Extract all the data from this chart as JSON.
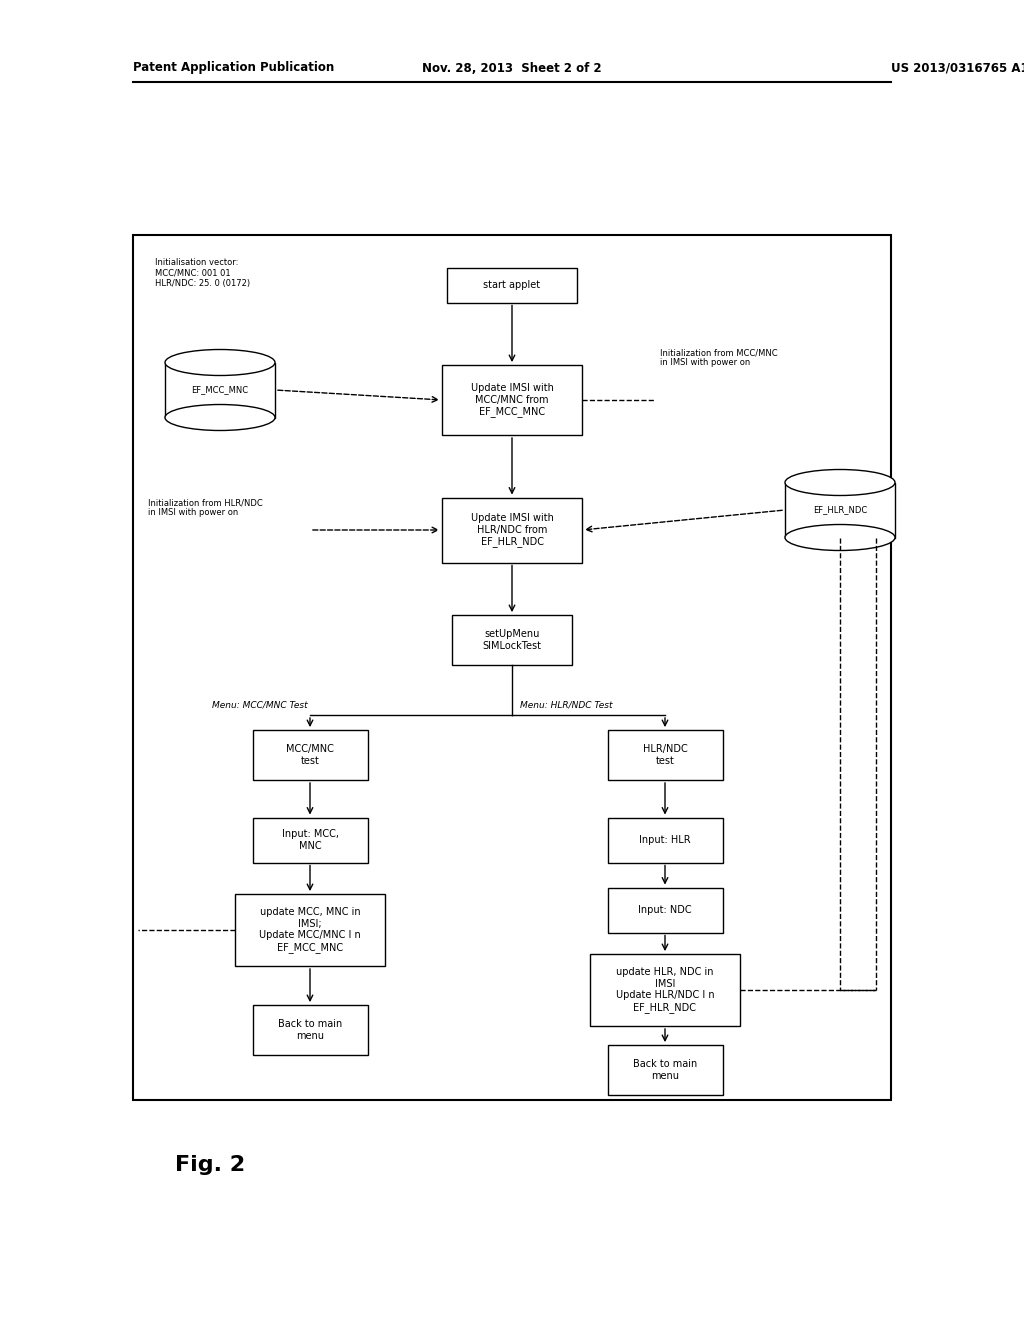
{
  "title_left": "Patent Application Publication",
  "title_mid": "Nov. 28, 2013  Sheet 2 of 2",
  "title_right": "US 2013/0316765 A1",
  "fig_label": "Fig. 2",
  "background": "#ffffff",
  "init_vector_text": "Initialisation vector:\nMCC/MNC: 001 01\nHLR/NDC: 25. 0 (0172)",
  "start_applet_text": "start applet",
  "box1_text": "Update IMSI with\nMCC/MNC from\nEF_MCC_MNC",
  "box2_text": "Update IMSI with\nHLR/NDC from\nEF_HLR_NDC",
  "box3_text": "setUpMenu\nSIMLockTest",
  "ef_mcc_mnc_text": "EF_MCC_MNC",
  "ef_hlr_ndc_text": "EF_HLR_NDC",
  "init_mcc_text": "Initialization from MCC/MNC\nin IMSI with power on",
  "init_hlr_text": "Initialization from HLR/NDC\nin IMSI with power on",
  "menu_mcc_label": "Menu: MCC/MNC Test",
  "menu_hlr_label": "Menu: HLR/NDC Test",
  "left_box1_text": "MCC/MNC\ntest",
  "left_box2_text": "Input: MCC,\nMNC",
  "left_box3_text": "update MCC, MNC in\nIMSI;\nUpdate MCC/MNC I n\nEF_MCC_MNC",
  "left_box4_text": "Back to main\nmenu",
  "right_box1_text": "HLR/NDC\ntest",
  "right_box2_text": "Input: HLR",
  "right_box3_text": "Input: NDC",
  "right_box4_text": "update HLR, NDC in\nIMSI\nUpdate HLR/NDC I n\nEF_HLR_NDC",
  "right_box5_text": "Back to main\nmenu"
}
